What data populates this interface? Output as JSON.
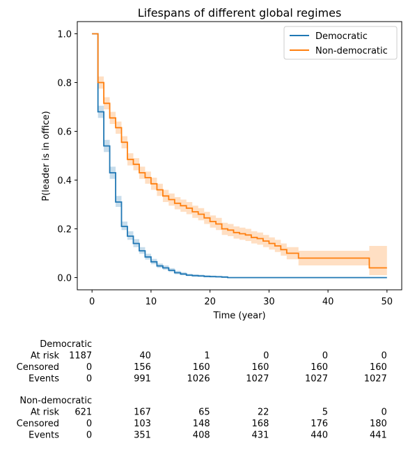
{
  "chart_data": {
    "type": "line",
    "title": "Lifespans of different global regimes",
    "xlabel": "Time (year)",
    "ylabel": "P(leader is in office)",
    "xlim": [
      -2.5,
      52.5
    ],
    "ylim": [
      -0.05,
      1.05
    ],
    "xticks": [
      0,
      10,
      20,
      30,
      40,
      50
    ],
    "yticks": [
      0.0,
      0.2,
      0.4,
      0.6,
      0.8,
      1.0
    ],
    "xtick_labels": [
      "0",
      "10",
      "20",
      "30",
      "40",
      "50"
    ],
    "ytick_labels": [
      "0.0",
      "0.2",
      "0.4",
      "0.6",
      "0.8",
      "1.0"
    ],
    "grid": false,
    "legend_position": "top-right",
    "step": "post",
    "series": [
      {
        "name": "Democratic",
        "color": "#1f77b4",
        "x": [
          0,
          1,
          2,
          3,
          4,
          5,
          6,
          7,
          8,
          9,
          10,
          11,
          12,
          13,
          14,
          15,
          16,
          17,
          18,
          19,
          20,
          21,
          22,
          23,
          50
        ],
        "y": [
          1.0,
          0.68,
          0.54,
          0.43,
          0.31,
          0.21,
          0.17,
          0.14,
          0.11,
          0.085,
          0.065,
          0.048,
          0.04,
          0.03,
          0.02,
          0.015,
          0.01,
          0.008,
          0.007,
          0.005,
          0.004,
          0.003,
          0.002,
          0.0,
          0.0
        ],
        "ci_lower": [
          1.0,
          0.655,
          0.515,
          0.405,
          0.29,
          0.195,
          0.155,
          0.125,
          0.098,
          0.074,
          0.055,
          0.04,
          0.032,
          0.023,
          0.014,
          0.01,
          0.006,
          0.004,
          0.003,
          0.002,
          0.001,
          0.001,
          0.0,
          0.0,
          0.0
        ],
        "ci_upper": [
          1.0,
          0.705,
          0.565,
          0.455,
          0.335,
          0.23,
          0.19,
          0.158,
          0.125,
          0.098,
          0.077,
          0.058,
          0.05,
          0.039,
          0.028,
          0.022,
          0.016,
          0.013,
          0.012,
          0.01,
          0.009,
          0.008,
          0.007,
          0.0,
          0.0
        ]
      },
      {
        "name": "Non-democratic",
        "color": "#ff7f0e",
        "x": [
          0,
          1,
          2,
          3,
          4,
          5,
          6,
          7,
          8,
          9,
          10,
          11,
          12,
          13,
          14,
          15,
          16,
          17,
          18,
          19,
          20,
          21,
          22,
          23,
          24,
          25,
          26,
          27,
          28,
          29,
          30,
          31,
          32,
          33,
          35,
          47,
          50
        ],
        "y": [
          1.0,
          0.8,
          0.715,
          0.655,
          0.615,
          0.555,
          0.485,
          0.465,
          0.43,
          0.41,
          0.385,
          0.36,
          0.335,
          0.32,
          0.305,
          0.295,
          0.285,
          0.27,
          0.26,
          0.245,
          0.23,
          0.22,
          0.2,
          0.195,
          0.185,
          0.18,
          0.175,
          0.165,
          0.16,
          0.15,
          0.14,
          0.13,
          0.115,
          0.1,
          0.08,
          0.04,
          0.04
        ],
        "ci_lower": [
          1.0,
          0.775,
          0.69,
          0.63,
          0.59,
          0.53,
          0.46,
          0.44,
          0.405,
          0.385,
          0.36,
          0.335,
          0.31,
          0.295,
          0.28,
          0.27,
          0.26,
          0.245,
          0.235,
          0.22,
          0.205,
          0.195,
          0.175,
          0.17,
          0.16,
          0.155,
          0.15,
          0.14,
          0.135,
          0.125,
          0.115,
          0.105,
          0.09,
          0.075,
          0.05,
          0.01,
          0.01
        ],
        "ci_upper": [
          1.0,
          0.825,
          0.74,
          0.68,
          0.64,
          0.58,
          0.51,
          0.49,
          0.455,
          0.435,
          0.41,
          0.385,
          0.36,
          0.345,
          0.33,
          0.32,
          0.31,
          0.295,
          0.285,
          0.27,
          0.255,
          0.245,
          0.225,
          0.22,
          0.21,
          0.205,
          0.2,
          0.19,
          0.185,
          0.175,
          0.165,
          0.155,
          0.14,
          0.125,
          0.11,
          0.13,
          0.13
        ]
      }
    ],
    "at_risk_table": {
      "columns": [
        "0",
        "10",
        "20",
        "30",
        "40",
        "50"
      ],
      "groups": [
        {
          "name": "Democratic",
          "rows": [
            {
              "label": "At risk",
              "values": [
                "1187",
                "40",
                "1",
                "0",
                "0",
                "0"
              ]
            },
            {
              "label": "Censored",
              "values": [
                "0",
                "156",
                "160",
                "160",
                "160",
                "160"
              ]
            },
            {
              "label": "Events",
              "values": [
                "0",
                "991",
                "1026",
                "1027",
                "1027",
                "1027"
              ]
            }
          ]
        },
        {
          "name": "Non-democratic",
          "rows": [
            {
              "label": "At risk",
              "values": [
                "621",
                "167",
                "65",
                "22",
                "5",
                "0"
              ]
            },
            {
              "label": "Censored",
              "values": [
                "0",
                "103",
                "148",
                "168",
                "176",
                "180"
              ]
            },
            {
              "label": "Events",
              "values": [
                "0",
                "351",
                "408",
                "431",
                "440",
                "441"
              ]
            }
          ]
        }
      ]
    }
  }
}
